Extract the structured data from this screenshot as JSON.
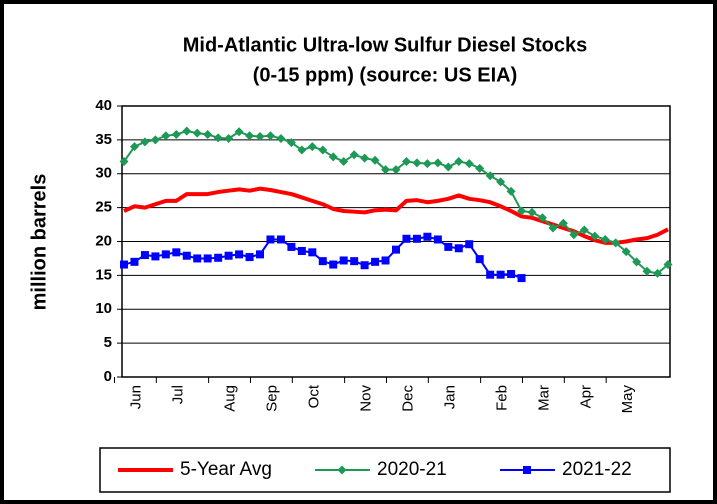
{
  "chart_data": {
    "type": "line",
    "title": "Mid-Atlantic Ultra-low Sulfur Diesel Stocks",
    "subtitle": "(0-15 ppm) (source: US EIA)",
    "y_label": "million barrels",
    "categories": [
      null,
      "Jun",
      null,
      null,
      null,
      "Jul",
      null,
      null,
      null,
      null,
      "Aug",
      null,
      null,
      null,
      "Sep",
      null,
      null,
      null,
      "Oct",
      null,
      null,
      null,
      null,
      "Nov",
      null,
      null,
      null,
      "Dec",
      null,
      null,
      null,
      "Jan",
      null,
      null,
      null,
      null,
      "Feb",
      null,
      null,
      null,
      "Mar",
      null,
      null,
      null,
      "Apr",
      null,
      null,
      null,
      "May",
      null,
      null,
      null,
      null
    ],
    "series": [
      {
        "name": "5-Year Avg",
        "color": "#ff0000",
        "marker": "none",
        "values": [
          24.5,
          25.2,
          25,
          25.5,
          26,
          26,
          27,
          27,
          27,
          27.3,
          27.5,
          27.7,
          27.5,
          27.8,
          27.6,
          27.3,
          27,
          26.5,
          26,
          25.5,
          24.8,
          24.5,
          24.4,
          24.3,
          24.6,
          24.7,
          24.6,
          26,
          26.1,
          25.8,
          26,
          26.3,
          26.8,
          26.3,
          26.1,
          25.8,
          25.2,
          24.5,
          23.7,
          23.5,
          23,
          22.5,
          22,
          21.5,
          20.8,
          20.2,
          19.8,
          19.8,
          20,
          20.3,
          20.5,
          21,
          21.8
        ]
      },
      {
        "name": "2020-21",
        "color": "#1e9955",
        "marker": "diamond",
        "values": [
          31.8,
          34,
          34.7,
          35,
          35.6,
          35.8,
          36.3,
          36,
          35.8,
          35.3,
          35.2,
          36.2,
          35.6,
          35.5,
          35.6,
          35.2,
          34.6,
          33.5,
          34,
          33.5,
          32.5,
          31.8,
          32.8,
          32.3,
          32,
          30.6,
          30.6,
          31.8,
          31.6,
          31.5,
          31.6,
          31,
          31.8,
          31.5,
          30.8,
          29.7,
          28.8,
          27.4,
          24.5,
          24.3,
          23.5,
          22,
          22.7,
          21,
          21.7,
          20.8,
          20.3,
          19.8,
          18.5,
          17,
          15.6,
          15.3,
          16.6
        ]
      },
      {
        "name": "2021-22",
        "color": "#0000ff",
        "marker": "square",
        "values": [
          16.6,
          17,
          18,
          17.8,
          18.1,
          18.4,
          17.9,
          17.5,
          17.5,
          17.6,
          17.9,
          18.1,
          17.7,
          18.1,
          20.3,
          20.3,
          19.2,
          18.6,
          18.4,
          17.1,
          16.6,
          17.2,
          17.1,
          16.5,
          17,
          17.2,
          18.8,
          20.4,
          20.4,
          20.7,
          20.3,
          19.2,
          19,
          19.6,
          17.4,
          15.1,
          15.1,
          15.2,
          14.6,
          null,
          null,
          null,
          null,
          null,
          null,
          null,
          null,
          null,
          null,
          null,
          null,
          null,
          null
        ]
      }
    ],
    "ylim": [
      0,
      40
    ],
    "yticks": [
      0,
      5,
      10,
      15,
      20,
      25,
      30,
      35,
      40
    ],
    "grid": true,
    "legend": "bottom"
  }
}
